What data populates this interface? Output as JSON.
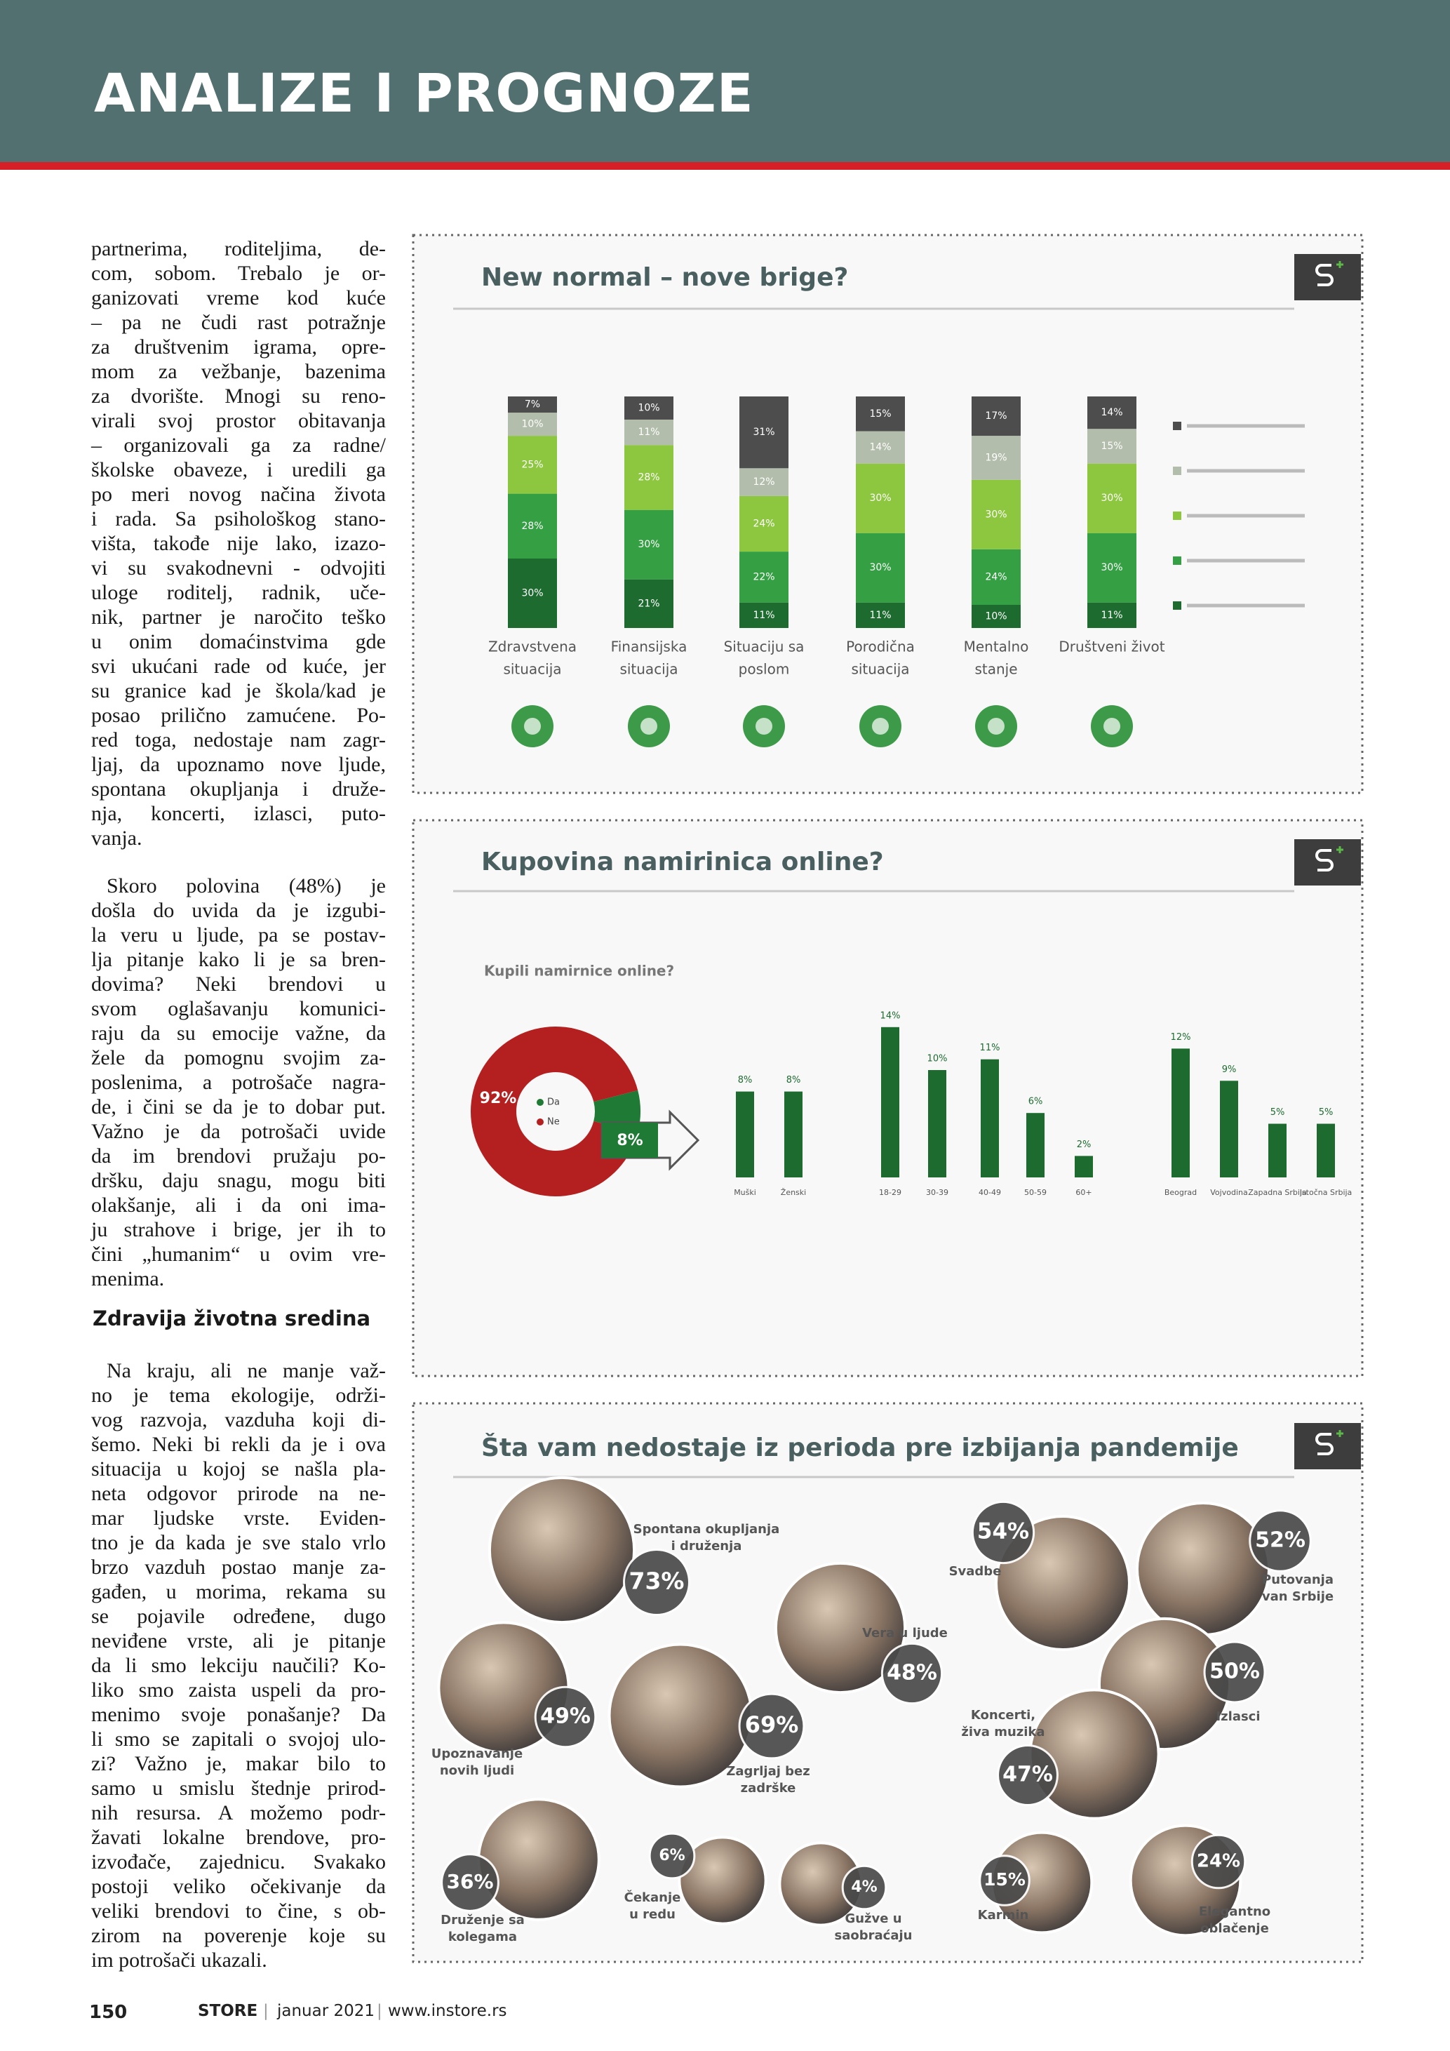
{
  "header": {
    "title": "ANALIZE I PROGNOZE"
  },
  "article": {
    "paragraph_1": [
      "partnerima, roditeljima, de-",
      "com, sobom. Trebalo je or-",
      "ganizovati vreme kod kuće",
      "– pa ne čudi rast potražnje",
      "za društvenim igrama, opre-",
      "mom za vežbanje, bazenima",
      "za dvorište. Mnogi su reno-",
      "virali svoj prostor obitavanja",
      "– organizovali ga za radne/",
      "školske obaveze, i uredili ga",
      "po meri novog načina života",
      "i rada. Sa psihološkog stano-",
      "višta, takođe nije lako, izazo-",
      "vi su svakodnevni - odvojiti",
      "uloge roditelj, radnik, uče-",
      "nik, partner je naročito teško",
      "u onim domaćinstvima gde",
      "svi ukućani rade od kuće, jer",
      "su granice kad je škola/kad je",
      "posao prilično zamućene. Po-",
      "red toga, nedostaje nam zagr-",
      "ljaj, da upoznamo nove ljude,",
      "spontana okupljanja i druže-",
      "nja, koncerti, izlasci, puto-",
      "vanja."
    ],
    "paragraph_2": [
      "Skoro polovina (48%) je",
      "došla do uvida da je izgubi-",
      "la veru u ljude, pa se postav-",
      "lja pitanje kako li je sa bren-",
      "dovima? Neki brendovi u",
      "svom oglašavanju komunici-",
      "raju da su emocije važne, da",
      "žele da pomognu svojim za-",
      "poslenima, a potrošače nagra-",
      "de, i čini se da je to dobar put.",
      "Važno je da potrošači uvide",
      "da im brendovi pružaju po-",
      "dršku, daju snagu, mogu biti",
      "olakšanje, ali i da oni ima-",
      "ju strahove i brige, jer ih to",
      "čini „humanim“ u ovim vre-",
      "menima."
    ],
    "heading": "Zdravija životna sredina",
    "paragraph_3": [
      "Na kraju, ali ne manje važ-",
      "no je tema ekologije, održi-",
      "vog razvoja, vazduha koji di-",
      "šemo. Neki bi rekli da je i ova",
      "situacija u kojoj se našla pla-",
      "neta odgovor prirode na ne-",
      "mar ljudske vrste. Eviden-",
      "tno je da kada je sve stalo vrlo",
      "brzo vazduh postao manje za-",
      "gađen, u morima, rekama su",
      "se pojavile određene, dugo",
      "neviđene vrste, ali je pitanje",
      "da li smo lekciju naučili? Ko-",
      "liko smo zaista uspeli da pro-",
      "menimo svoje ponašanje? Da",
      "li smo se zapitali o svojoj ulo-",
      "zi? Važno je, makar bilo to",
      "samo u smislu štednje prirod-",
      "nih resursa. A možemo podr-",
      "žavati lokalne brendove, pro-",
      "izvođače, zajednicu. Svakako",
      "postoji veliko očekivanje da",
      "veliki brendovi to čine, s ob-",
      "zirom na poverenje koje su",
      "im potrošači ukazali."
    ]
  },
  "footer": {
    "page": "150",
    "brand": "STORE",
    "issue": "januar 2021",
    "url": "www.instore.rs"
  },
  "chart_data": [
    {
      "type": "stacked_bar",
      "title": "New normal – nove brige?",
      "categories": [
        [
          "Zdravstvena",
          "situacija"
        ],
        [
          "Finansijska",
          "situacija"
        ],
        [
          "Situaciju sa",
          "poslom"
        ],
        [
          "Porodična",
          "situacija"
        ],
        [
          "Mentalno",
          "stanje"
        ],
        [
          "Društveni život"
        ]
      ],
      "series": [
        {
          "color": "#1e6b30",
          "values": [
            30,
            21,
            11,
            11,
            10,
            11
          ],
          "value_labels": [
            "30%",
            "21%",
            "11%",
            "11%",
            "10%",
            "11%"
          ]
        },
        {
          "color": "#34a043",
          "values": [
            28,
            30,
            22,
            30,
            24,
            30
          ],
          "value_labels": [
            "28%",
            "30%",
            "22%",
            "30%",
            "24%",
            "30%"
          ]
        },
        {
          "color": "#8dc63f",
          "values": [
            25,
            28,
            24,
            30,
            30,
            30
          ],
          "value_labels": [
            "25%",
            "28%",
            "24%",
            "30%",
            "30%",
            "30%"
          ]
        },
        {
          "color": "#b3bdab",
          "values": [
            10,
            11,
            12,
            14,
            19,
            15
          ],
          "value_labels": [
            "10%",
            "11%",
            "12%",
            "14%",
            "19%",
            "15%"
          ]
        },
        {
          "color": "#4d4d4d",
          "values": [
            7,
            10,
            31,
            15,
            17,
            14
          ],
          "value_labels": [
            "7%",
            "10%",
            "31%",
            "15%",
            "17%",
            "14%"
          ]
        }
      ]
    },
    {
      "type": "pie",
      "title": "Kupovina namirinica online?",
      "subtitle": "Kupili namirnice online?",
      "labels": [
        "Da",
        "Ne"
      ],
      "colors": [
        "#1e7a34",
        "#b3201f"
      ],
      "values": [
        8,
        92
      ],
      "value_labels": [
        "8%",
        "92%"
      ]
    },
    {
      "type": "bar",
      "color": "#1e6b30",
      "categories": [
        "Muški",
        "Ženski",
        "18-29",
        "30-39",
        "40-49",
        "50-59",
        "60+",
        "Beograd",
        "Vojvodina",
        "Zapadna Srbija",
        "Istočna Srbija"
      ],
      "values": [
        8,
        8,
        14,
        10,
        11,
        6,
        2,
        12,
        9,
        5,
        5
      ],
      "value_labels": [
        "8%",
        "8%",
        "14%",
        "10%",
        "11%",
        "6%",
        "2%",
        "12%",
        "9%",
        "5%",
        "5%"
      ]
    },
    {
      "type": "bubble",
      "title": "Šta vam nedostaje iz perioda pre izbijanja pandemije",
      "labels": [
        [
          "Spontana okupljanja",
          "i druženja"
        ],
        [
          "Svadbe"
        ],
        [
          "Putovanja",
          "van Srbije"
        ],
        [
          "Vera u ljude"
        ],
        [
          "Izlasci"
        ],
        [
          "Upoznavanje",
          "novih ljudi"
        ],
        [
          "Zagrljaj bez",
          "zadrške"
        ],
        [
          "Koncerti,",
          "živa muzika"
        ],
        [
          "Druženje sa",
          "kolegama"
        ],
        [
          "Čekanje",
          "u redu"
        ],
        [
          "Gužve u",
          "saobraćaju"
        ],
        [
          "Karmin"
        ],
        [
          "Elegantno",
          "oblačenje"
        ]
      ],
      "values": [
        73,
        54,
        52,
        48,
        50,
        49,
        69,
        47,
        36,
        6,
        4,
        15,
        24
      ],
      "value_labels": [
        "73%",
        "54%",
        "52%",
        "48%",
        "50%",
        "49%",
        "69%",
        "47%",
        "36%",
        "6%",
        "4%",
        "15%",
        "24%"
      ]
    }
  ]
}
